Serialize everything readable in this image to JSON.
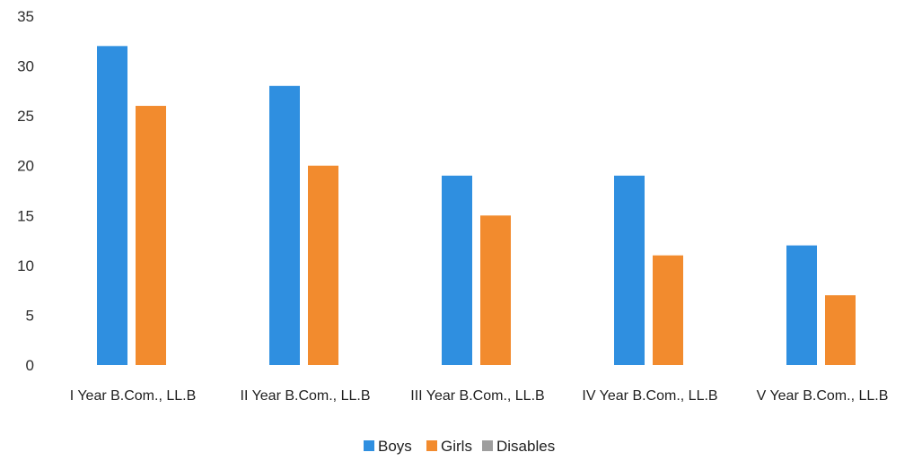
{
  "chart_data": {
    "type": "bar",
    "categories": [
      "I Year B.Com., LL.B",
      "II Year B.Com., LL.B",
      "III Year B.Com., LL.B",
      "IV Year B.Com., LL.B",
      "V Year B.Com., LL.B"
    ],
    "series": [
      {
        "name": "Boys",
        "color": "#2f8fe0",
        "values": [
          32,
          28,
          19,
          19,
          12
        ]
      },
      {
        "name": "Girls",
        "color": "#f28b2e",
        "values": [
          26,
          20,
          15,
          11,
          7
        ]
      },
      {
        "name": "Disables",
        "color": "#9e9e9e",
        "values": [
          0,
          0,
          0,
          0,
          0
        ]
      }
    ],
    "yticks": [
      "0",
      "5",
      "10",
      "15",
      "20",
      "25",
      "30",
      "35"
    ],
    "ylim": [
      0,
      35
    ],
    "grid": false,
    "legend": "bottom"
  }
}
